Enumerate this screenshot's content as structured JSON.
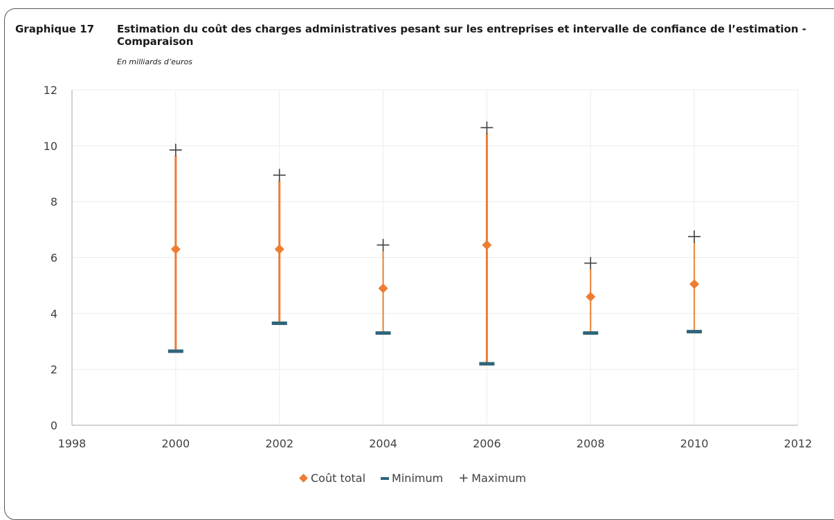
{
  "header": {
    "number": "Graphique 17",
    "title": "Estimation du coût des charges administratives pesant sur les entreprises et intervalle de confiance de l’estimation - Comparaison",
    "subtitle": "En milliards d’euros"
  },
  "legend": {
    "cout_total": "Coût total",
    "minimum": "Minimum",
    "maximum": "Maximum"
  },
  "colors": {
    "cout_total": "#ED7D31",
    "minimum": "#2E6479",
    "maximum": "#404040",
    "range_bar": "#ED7D31",
    "grid": "#ececec"
  },
  "chart_data": {
    "type": "scatter",
    "x": [
      2000,
      2002,
      2004,
      2006,
      2008,
      2010
    ],
    "series": [
      {
        "name": "Coût total",
        "values": [
          6.3,
          6.3,
          4.9,
          6.45,
          4.6,
          5.05
        ]
      },
      {
        "name": "Minimum",
        "values": [
          2.65,
          3.65,
          3.3,
          2.2,
          3.3,
          3.35
        ]
      },
      {
        "name": "Maximum",
        "values": [
          9.85,
          8.95,
          6.45,
          10.65,
          5.8,
          6.75
        ]
      }
    ],
    "xlim": [
      1998,
      2012
    ],
    "ylim": [
      0,
      12
    ],
    "xticks": [
      1998,
      2000,
      2002,
      2004,
      2006,
      2008,
      2010,
      2012
    ],
    "yticks": [
      0,
      2,
      4,
      6,
      8,
      10,
      12
    ],
    "grid": true,
    "legend_position": "bottom"
  }
}
